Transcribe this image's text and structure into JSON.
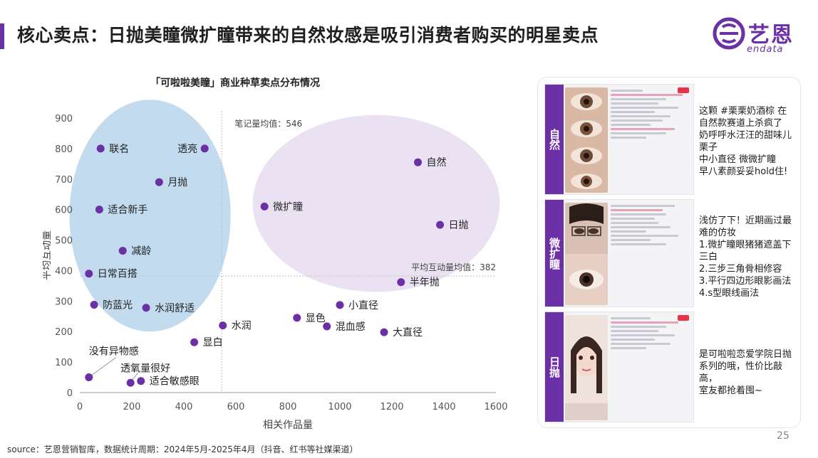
{
  "header": {
    "title": "核心卖点：日抛美瞳微扩瞳带来的自然妆感是吸引消费者购买的明星卖点"
  },
  "logo": {
    "cn": "艺恩",
    "en": "endata",
    "accent": "#6b2fa6"
  },
  "chart_title": "「可啦啦美瞳」商业种草卖点分布情况",
  "chart_data": {
    "type": "scatter",
    "xlabel": "相关作品量",
    "ylabel": "平均互动量",
    "xlim": [
      0,
      1600
    ],
    "ylim": [
      0,
      900
    ],
    "xticks": [
      0,
      200,
      400,
      600,
      800,
      1000,
      1200,
      1400,
      1600
    ],
    "yticks": [
      0,
      100,
      200,
      300,
      400,
      500,
      600,
      700,
      800,
      900
    ],
    "ref_lines": {
      "x_mean": {
        "value": 546,
        "label": "笔记量均值：546"
      },
      "y_mean": {
        "value": 382,
        "label": "平均互动量均值：382"
      }
    },
    "point_color": "#6b2fa6",
    "points": [
      {
        "label": "联名",
        "x": 80,
        "y": 800
      },
      {
        "label": "透亮",
        "x": 480,
        "y": 800
      },
      {
        "label": "月抛",
        "x": 305,
        "y": 690
      },
      {
        "label": "适合新手",
        "x": 75,
        "y": 600
      },
      {
        "label": "减龄",
        "x": 165,
        "y": 465
      },
      {
        "label": "日常百搭",
        "x": 35,
        "y": 390
      },
      {
        "label": "防蓝光",
        "x": 55,
        "y": 288
      },
      {
        "label": "水润舒适",
        "x": 255,
        "y": 278
      },
      {
        "label": "水润",
        "x": 550,
        "y": 220
      },
      {
        "label": "显白",
        "x": 440,
        "y": 165
      },
      {
        "label": "没有异物感",
        "x": 35,
        "y": 50
      },
      {
        "label": "透氧量很好",
        "x": 195,
        "y": 32
      },
      {
        "label": "适合敏感眼",
        "x": 235,
        "y": 38
      },
      {
        "label": "微扩瞳",
        "x": 710,
        "y": 610
      },
      {
        "label": "自然",
        "x": 1300,
        "y": 755
      },
      {
        "label": "日抛",
        "x": 1385,
        "y": 550
      },
      {
        "label": "半年抛",
        "x": 1235,
        "y": 362
      },
      {
        "label": "小直径",
        "x": 1000,
        "y": 287
      },
      {
        "label": "显色",
        "x": 835,
        "y": 245
      },
      {
        "label": "混血感",
        "x": 950,
        "y": 217
      },
      {
        "label": "大直径",
        "x": 1170,
        "y": 198
      }
    ],
    "clusters": [
      {
        "name": "left-cluster",
        "color": "#b7d5ec",
        "cx": 270,
        "cy": 580,
        "rx": 310,
        "ry": 380
      },
      {
        "name": "right-cluster",
        "color": "#e6ddf0",
        "cx": 1140,
        "cy": 620,
        "rx": 475,
        "ry": 290
      }
    ]
  },
  "cards": [
    {
      "tag": "自然",
      "caption": [
        "这颗 #栗栗奶酒棕 在",
        "自然款赛道上杀疯了",
        "奶呼呼水汪汪的甜味儿",
        "栗子",
        "中小直径 微微扩瞳",
        "早八素颜妥妥hold住!"
      ]
    },
    {
      "tag": "微扩瞳",
      "caption": [
        "浅仿了下！近期画过最",
        "难的仿妆",
        "1.微扩瞳眼猪猪遮盖下",
        "三白",
        "2.三步三角骨相修容",
        "3.平行四边形眼影画法",
        "4.s型眼线画法"
      ]
    },
    {
      "tag": "日抛",
      "caption": [
        "是可啦啦恋爱学院日抛",
        "系列的哦，性价比敲高，",
        "室友都抢着囤~"
      ]
    }
  ],
  "source": "source：艺恩营销智库，数据统计周期：2024年5月-2025年4月（抖音、红书等社媒渠道）",
  "page_number": "25"
}
